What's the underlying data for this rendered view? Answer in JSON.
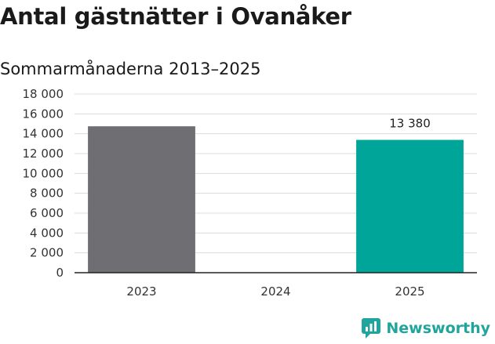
{
  "title": "Antal gästnätter i Ovanåker",
  "subtitle": "Sommarmånaderna 2013–2025",
  "brand": {
    "name": "Newsworthy",
    "logo_icon": "newsworthy-logo-icon",
    "color": "#1fa59b"
  },
  "chart_data": {
    "type": "bar",
    "title": "Antal gästnätter i Ovanåker",
    "subtitle": "Sommarmånaderna 2013–2025",
    "categories": [
      "2023",
      "2024",
      "2025"
    ],
    "values": [
      14750,
      null,
      13380
    ],
    "colors": [
      "#6e6e73",
      "#6e6e73",
      "#00a59a"
    ],
    "data_labels": [
      null,
      null,
      "13 380"
    ],
    "yticks": [
      "0",
      "2 000",
      "4 000",
      "6 000",
      "8 000",
      "10 000",
      "12 000",
      "14 000",
      "16 000",
      "18 000"
    ],
    "ylim": [
      0,
      18000
    ],
    "xlabel": "",
    "ylabel": "",
    "grid": true,
    "legend": "none"
  }
}
